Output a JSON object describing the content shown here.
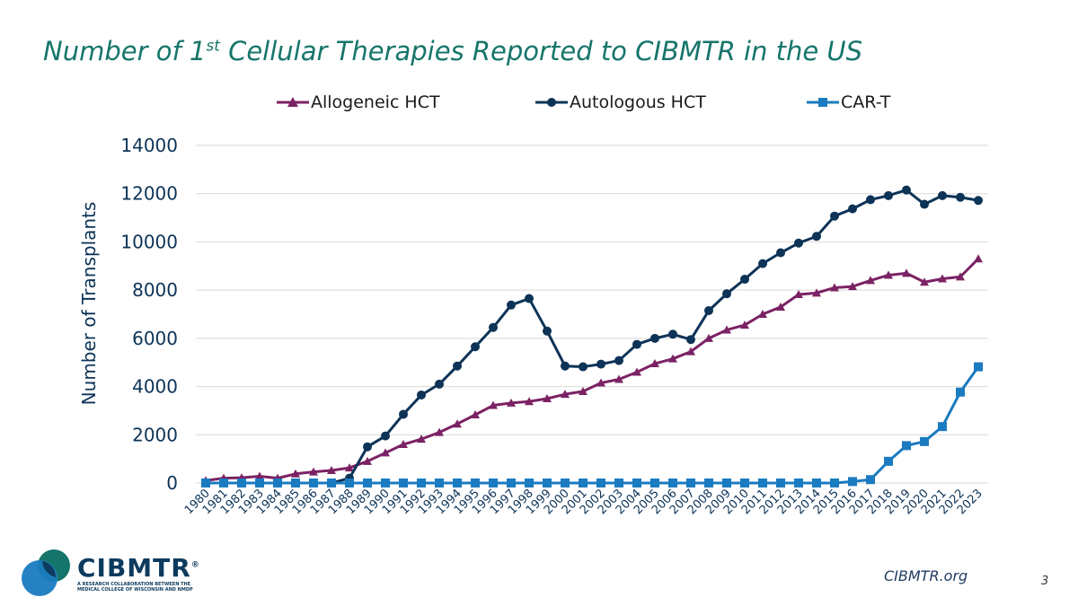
{
  "slide": {
    "title_main": "Number of 1",
    "title_sup": "st",
    "title_rest": " Cellular Therapies Reported to CIBMTR in the US",
    "footer_url": "CIBMTR.org",
    "page_number": "3"
  },
  "logo": {
    "wordmark": "CIBMTR",
    "trademark": "®",
    "tagline_line1": "A RESEARCH COLLABORATION BETWEEN THE",
    "tagline_line2": "MEDICAL COLLEGE OF WISCONSIN AND NMDP"
  },
  "colors": {
    "title": "#16756A",
    "allogeneic": "#7B2265",
    "autologous": "#0D3357",
    "car_t": "#1A7BC0",
    "axis_text": "#0D3357",
    "grid": "#D9D9D9"
  },
  "chart_data": {
    "type": "line",
    "title": "",
    "ylabel": "Number of Transplants",
    "xlabel": "",
    "ylim": [
      0,
      14000
    ],
    "yticks": [
      0,
      2000,
      4000,
      6000,
      8000,
      10000,
      12000,
      14000
    ],
    "grid": "horizontal",
    "legend_position": "top",
    "x": [
      "1980",
      "1981",
      "1982",
      "1983",
      "1984",
      "1985",
      "1986",
      "1987",
      "1988",
      "1989",
      "1990",
      "1991",
      "1992",
      "1993",
      "1994",
      "1995",
      "1996",
      "1997",
      "1998",
      "1999",
      "2000",
      "2001",
      "2002",
      "2003",
      "2004",
      "2005",
      "2006",
      "2007",
      "2008",
      "2009",
      "2010",
      "2011",
      "2012",
      "2013",
      "2014",
      "2015",
      "2016",
      "2017",
      "2018",
      "2019",
      "2020",
      "2021",
      "2022",
      "2023"
    ],
    "series": [
      {
        "name": "Allogeneic HCT",
        "marker": "triangle",
        "color": "#7B2265",
        "values": [
          100,
          200,
          220,
          280,
          200,
          380,
          460,
          520,
          630,
          900,
          1250,
          1600,
          1820,
          2100,
          2450,
          2830,
          3220,
          3320,
          3380,
          3500,
          3680,
          3800,
          4150,
          4300,
          4600,
          4950,
          5150,
          5450,
          6000,
          6350,
          6550,
          7000,
          7300,
          7820,
          7880,
          8100,
          8150,
          8400,
          8620,
          8700,
          8330,
          8470,
          8550,
          9300
        ]
      },
      {
        "name": "Autologous HCT",
        "marker": "circle",
        "color": "#0D3357",
        "values": [
          0,
          0,
          0,
          0,
          0,
          0,
          0,
          0,
          200,
          1500,
          1950,
          2850,
          3650,
          4100,
          4850,
          5650,
          6450,
          7380,
          7650,
          6300,
          4850,
          4820,
          4930,
          5080,
          5750,
          6000,
          6170,
          5950,
          7150,
          7850,
          8450,
          9100,
          9550,
          9950,
          10230,
          11070,
          11370,
          11750,
          11920,
          12150,
          11560,
          11920,
          11850,
          11720
        ]
      },
      {
        "name": "CAR-T",
        "marker": "square",
        "color": "#1A7BC0",
        "values": [
          0,
          0,
          0,
          0,
          0,
          0,
          0,
          0,
          0,
          0,
          0,
          0,
          0,
          0,
          0,
          0,
          0,
          0,
          0,
          0,
          0,
          0,
          0,
          0,
          0,
          0,
          0,
          0,
          0,
          0,
          0,
          0,
          0,
          0,
          0,
          0,
          60,
          140,
          900,
          1550,
          1720,
          2340,
          3770,
          4820
        ]
      }
    ]
  }
}
